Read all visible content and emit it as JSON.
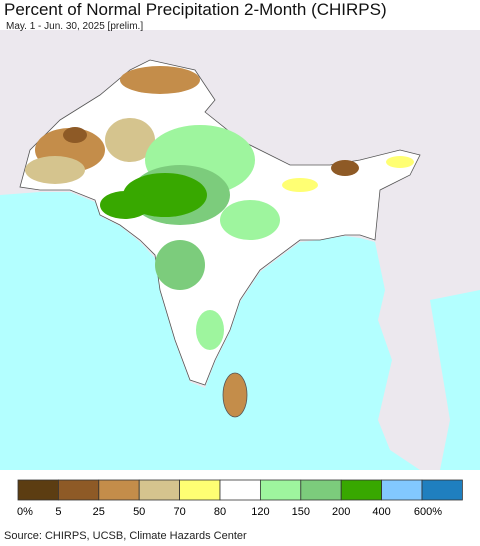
{
  "header": {
    "title": "Percent of Normal Precipitation 2-Month (CHIRPS)",
    "subtitle": "May. 1 - Jun. 30, 2025 [prelim.]"
  },
  "legend": {
    "items": [
      {
        "color": "#5c3d12",
        "label": "0%"
      },
      {
        "color": "#8e5a26",
        "label": "5"
      },
      {
        "color": "#c48d4a",
        "label": "25"
      },
      {
        "color": "#d5c48e",
        "label": "50"
      },
      {
        "color": "#ffff73",
        "label": "70"
      },
      {
        "color": "#ffffff",
        "label": "80"
      },
      {
        "color": "#9ef59e",
        "label": "120"
      },
      {
        "color": "#7ccc7c",
        "label": "150"
      },
      {
        "color": "#38a800",
        "label": "200"
      },
      {
        "color": "#82c8ff",
        "label": "400"
      },
      {
        "color": "#1f7fbf",
        "label": "600%"
      }
    ]
  },
  "source": "Source: CHIRPS, UCSB, Climate Hazards Center"
}
